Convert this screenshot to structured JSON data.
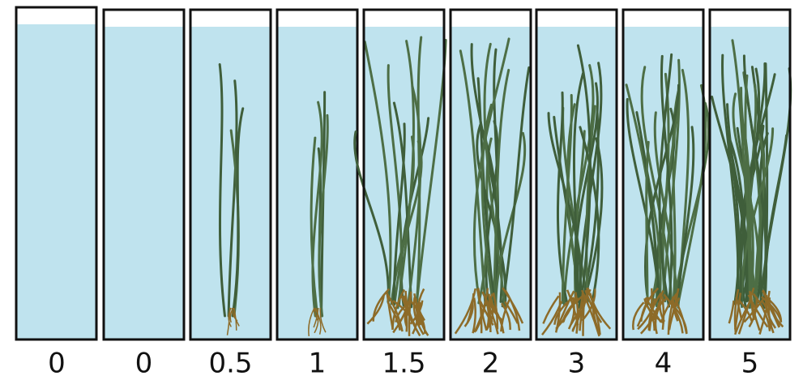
{
  "panels": [
    {
      "label": "0"
    },
    {
      "label": "0"
    },
    {
      "label": "0.5"
    },
    {
      "label": "1"
    },
    {
      "label": "1.5"
    },
    {
      "label": "2"
    },
    {
      "label": "3"
    },
    {
      "label": "4"
    },
    {
      "label": "5"
    }
  ]
}
